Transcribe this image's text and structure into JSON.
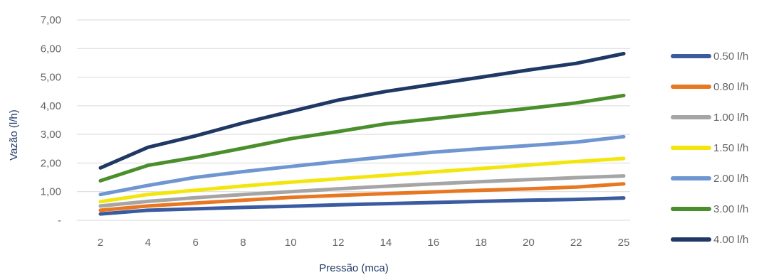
{
  "chart_data": {
    "type": "line",
    "x": [
      2,
      4,
      6,
      8,
      10,
      12,
      14,
      16,
      18,
      20,
      22,
      25
    ],
    "series": [
      {
        "name": "0.50 l/h",
        "color": "#3a5ba0",
        "values": [
          0.22,
          0.35,
          0.4,
          0.45,
          0.49,
          0.54,
          0.58,
          0.62,
          0.66,
          0.7,
          0.73,
          0.78
        ]
      },
      {
        "name": "0.80 l/h",
        "color": "#e87722",
        "values": [
          0.35,
          0.5,
          0.6,
          0.7,
          0.8,
          0.87,
          0.93,
          0.99,
          1.05,
          1.1,
          1.16,
          1.27
        ]
      },
      {
        "name": "1.00 l/h",
        "color": "#a5a5a5",
        "values": [
          0.5,
          0.66,
          0.79,
          0.9,
          1.0,
          1.1,
          1.19,
          1.27,
          1.35,
          1.42,
          1.49,
          1.55
        ]
      },
      {
        "name": "1.50 l/h",
        "color": "#f2e60d",
        "values": [
          0.65,
          0.9,
          1.05,
          1.2,
          1.33,
          1.45,
          1.57,
          1.69,
          1.81,
          1.93,
          2.05,
          2.16
        ]
      },
      {
        "name": "2.00 l/h",
        "color": "#6f96d1",
        "values": [
          0.9,
          1.22,
          1.5,
          1.7,
          1.88,
          2.05,
          2.22,
          2.38,
          2.5,
          2.61,
          2.73,
          2.92
        ]
      },
      {
        "name": "3.00 l/h",
        "color": "#4a8f2c",
        "values": [
          1.38,
          1.92,
          2.2,
          2.52,
          2.85,
          3.1,
          3.37,
          3.55,
          3.73,
          3.91,
          4.1,
          4.36
        ]
      },
      {
        "name": "4.00 l/h",
        "color": "#1f3864",
        "values": [
          1.83,
          2.55,
          2.95,
          3.4,
          3.8,
          4.2,
          4.5,
          4.75,
          5.0,
          5.25,
          5.48,
          5.82
        ]
      }
    ],
    "xlabel": "Pressão (mca)",
    "ylabel": "Vazão (l/h)",
    "ylim": [
      0,
      7
    ],
    "y_ticks": [
      0,
      1,
      2,
      3,
      4,
      5,
      6,
      7
    ],
    "y_tick_labels": [
      "-",
      "1,00",
      "2,00",
      "3,00",
      "4,00",
      "5,00",
      "6,00",
      "7,00"
    ],
    "grid": true,
    "legend_position": "right"
  }
}
